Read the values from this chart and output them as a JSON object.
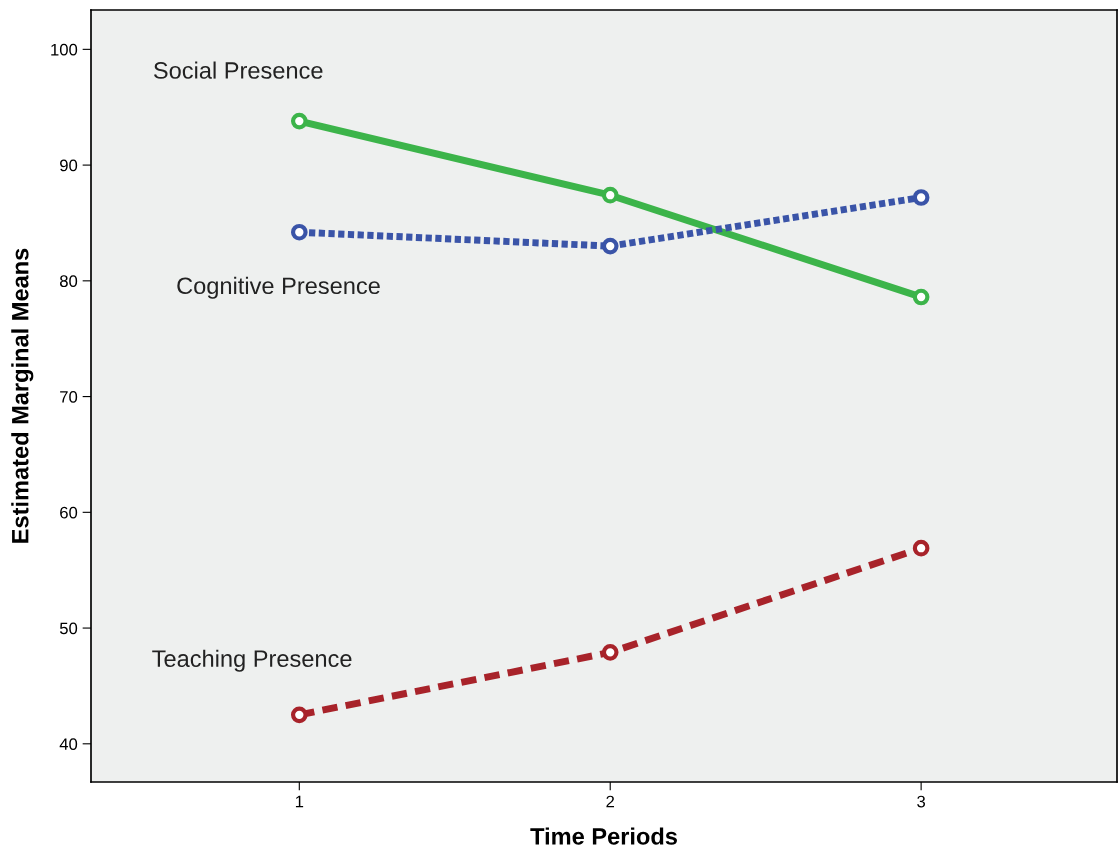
{
  "chart_data": {
    "type": "line",
    "xlabel": "Time Periods",
    "ylabel": "Estimated Marginal Means",
    "x": [
      1,
      2,
      3
    ],
    "xlim": [
      0.33,
      3.63
    ],
    "xticks": [
      1,
      2,
      3
    ],
    "ylim": [
      36.7,
      103.4
    ],
    "yticks": [
      40,
      50,
      60,
      70,
      80,
      90,
      100
    ],
    "grid": false,
    "legend": false,
    "marker": "circle",
    "series": [
      {
        "name": "Social Presence",
        "color": "#3cb44a",
        "line_style": "solid",
        "values": [
          93.8,
          87.4,
          78.6
        ]
      },
      {
        "name": "Cognitive Presence",
        "color": "#3a54a8",
        "line_style": "dotted",
        "values": [
          84.2,
          83.0,
          87.2
        ]
      },
      {
        "name": "Teaching Presence",
        "color": "#a8232a",
        "line_style": "dashed",
        "values": [
          42.5,
          47.9,
          56.9
        ]
      }
    ]
  }
}
